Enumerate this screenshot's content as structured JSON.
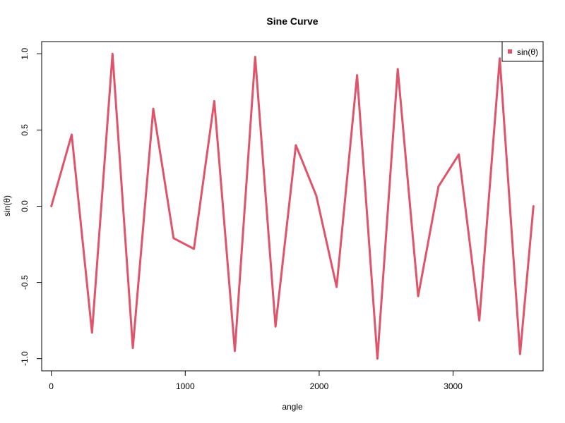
{
  "chart_data": {
    "type": "line",
    "title": "Sine Curve",
    "xlabel": "angle",
    "ylabel": "sin(θ)",
    "xlim": [
      -72,
      3672
    ],
    "ylim": [
      -1.08,
      1.08
    ],
    "x_ticks": [
      0,
      1000,
      2000,
      3000
    ],
    "x_tick_labels": [
      "0",
      "1000",
      "2000",
      "3000"
    ],
    "y_ticks": [
      -1.0,
      -0.5,
      0.0,
      0.5,
      1.0
    ],
    "y_tick_labels": [
      "-1.0",
      "-0.5",
      "0.0",
      "0.5",
      "1.0"
    ],
    "grid": false,
    "legend_position": "top-right",
    "series": [
      {
        "name": "sin(θ)",
        "color": "#DF536B",
        "x": [
          0,
          152,
          304,
          457,
          609,
          761,
          913,
          1065,
          1217,
          1370,
          1522,
          1674,
          1826,
          1978,
          2130,
          2283,
          2435,
          2587,
          2739,
          2891,
          3043,
          3196,
          3348,
          3500,
          3600
        ],
        "y": [
          0.0,
          0.47,
          -0.83,
          1.0,
          -0.93,
          0.64,
          -0.21,
          -0.28,
          0.69,
          -0.95,
          0.98,
          -0.79,
          0.4,
          0.07,
          -0.53,
          0.86,
          -1.0,
          0.9,
          -0.59,
          0.13,
          0.34,
          -0.75,
          0.97,
          -0.97,
          0.0
        ]
      }
    ]
  }
}
